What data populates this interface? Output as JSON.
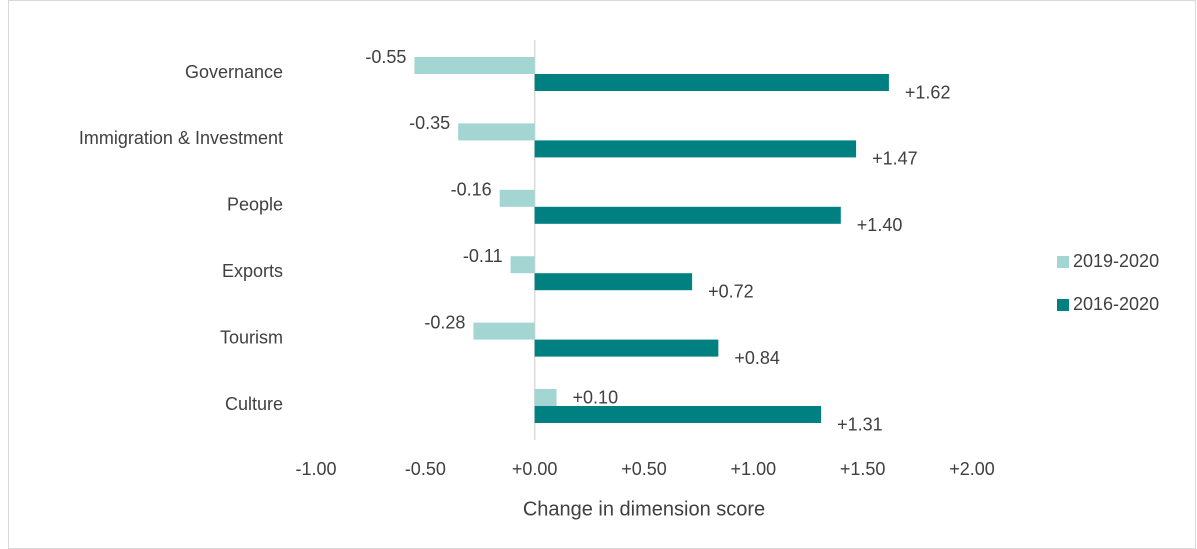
{
  "chart_data": {
    "type": "bar",
    "orientation": "horizontal",
    "categories": [
      "Governance",
      "Immigration & Investment",
      "People",
      "Exports",
      "Tourism",
      "Culture"
    ],
    "series": [
      {
        "name": "2019-2020",
        "color": "#a3d6d2",
        "values": [
          -0.55,
          -0.35,
          -0.16,
          -0.11,
          -0.28,
          0.1
        ],
        "value_labels": [
          "-0.55",
          "-0.35",
          "-0.16",
          "-0.11",
          "-0.28",
          "+0.10"
        ]
      },
      {
        "name": "2016-2020",
        "color": "#008080",
        "values": [
          1.62,
          1.47,
          1.4,
          0.72,
          0.84,
          1.31
        ],
        "value_labels": [
          "+1.62",
          "+1.47",
          "+1.40",
          "+0.72",
          "+0.84",
          "+1.31"
        ]
      }
    ],
    "xlabel": "Change in dimension score",
    "xlim": [
      -1.0,
      2.0
    ],
    "xticks": [
      {
        "value": -1.0,
        "label": "-1.00"
      },
      {
        "value": -0.5,
        "label": "-0.50"
      },
      {
        "value": 0,
        "label": "+0.00"
      },
      {
        "value": 0.5,
        "label": "+0.50"
      },
      {
        "value": 1.0,
        "label": "+1.00"
      },
      {
        "value": 1.5,
        "label": "+1.50"
      },
      {
        "value": 2.0,
        "label": "+2.00"
      }
    ],
    "legend": "right"
  }
}
